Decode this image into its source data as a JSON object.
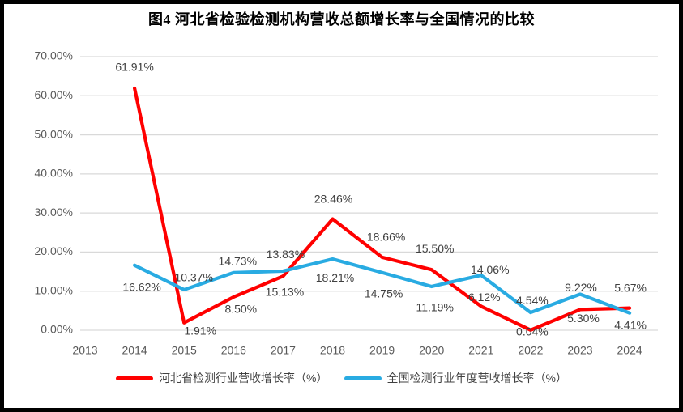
{
  "page": {
    "title": "图4 河北省检验检测机构营收总额增长率与全国情况的比较"
  },
  "chart_data": {
    "type": "line",
    "title": "图4 河北省检验检测机构营收总额增长率与全国情况的比较",
    "xlabel": "",
    "ylabel": "",
    "categories": [
      "2013",
      "2014",
      "2015",
      "2016",
      "2017",
      "2018",
      "2019",
      "2020",
      "2021",
      "2022",
      "2023",
      "2024"
    ],
    "series": [
      {
        "name": "河北省检测行业营收增长率（%）",
        "color": "#FF0000",
        "values": [
          null,
          61.91,
          1.91,
          8.5,
          13.83,
          28.46,
          18.66,
          15.5,
          6.12,
          0.04,
          5.3,
          5.67
        ],
        "labels": [
          "",
          "61.91%",
          "1.91%",
          "8.50%",
          "13.83%",
          "28.46%",
          "18.66%",
          "15.50%",
          "6.12%",
          "0.04%",
          "5.30%",
          "5.67%"
        ],
        "label_offsets": [
          [
            0,
            0
          ],
          [
            0,
            -25
          ],
          [
            20,
            11
          ],
          [
            9,
            16
          ],
          [
            3,
            -26
          ],
          [
            1,
            -24
          ],
          [
            5,
            -24
          ],
          [
            4,
            -25
          ],
          [
            4,
            -10
          ],
          [
            2,
            3
          ],
          [
            4,
            12
          ],
          [
            1,
            -24
          ]
        ]
      },
      {
        "name": "全国检测行业年度营收增长率（%）",
        "color": "#29ABE2",
        "values": [
          null,
          16.62,
          10.37,
          14.73,
          15.13,
          18.21,
          14.75,
          11.19,
          14.06,
          4.54,
          9.22,
          4.41
        ],
        "labels": [
          "",
          "16.62%",
          "10.37%",
          "14.73%",
          "15.13%",
          "18.21%",
          "14.75%",
          "11.19%",
          "14.06%",
          "4.54%",
          "9.22%",
          "4.41%"
        ],
        "label_offsets": [
          [
            0,
            0
          ],
          [
            9,
            28
          ],
          [
            12,
            -14
          ],
          [
            5,
            -13
          ],
          [
            2,
            27
          ],
          [
            3,
            24
          ],
          [
            2,
            27
          ],
          [
            4,
            27
          ],
          [
            11,
            -6
          ],
          [
            2,
            -14
          ],
          [
            1,
            -7
          ],
          [
            1,
            16
          ]
        ]
      }
    ],
    "yticks": [
      {
        "label": "0.00%",
        "value": 0
      },
      {
        "label": "10.00%",
        "value": 10
      },
      {
        "label": "20.00%",
        "value": 20
      },
      {
        "label": "30.00%",
        "value": 30
      },
      {
        "label": "40.00%",
        "value": 40
      },
      {
        "label": "50.00%",
        "value": 50
      },
      {
        "label": "60.00%",
        "value": 60
      },
      {
        "label": "70.00%",
        "value": 70
      }
    ],
    "ylim": [
      0,
      70
    ],
    "grid": true,
    "legend_position": "bottom",
    "colors": {
      "gridline": "#D9D9D9",
      "axis_text": "#595959",
      "data_label_text": "#404040",
      "title_text": "#000000"
    }
  }
}
